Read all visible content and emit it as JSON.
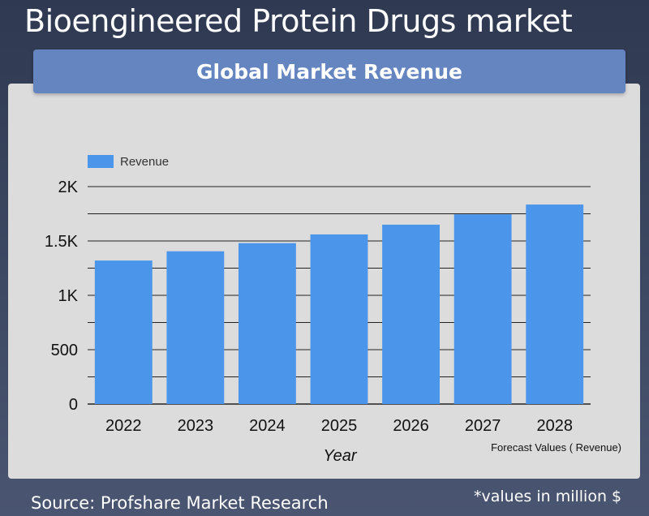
{
  "title": "Bioengineered Protein Drugs market",
  "banner": "Global Market Revenue",
  "source": "Source: Profshare Market Research",
  "note": "*values in million $",
  "chart_data": {
    "type": "bar",
    "categories": [
      "2022",
      "2023",
      "2024",
      "2025",
      "2026",
      "2027",
      "2028"
    ],
    "series": [
      {
        "name": "Revenue",
        "values": [
          1320,
          1405,
          1480,
          1560,
          1650,
          1745,
          1835
        ],
        "color": "#4b95ea"
      }
    ],
    "xlabel": "Year",
    "ylabel": "",
    "ylim": [
      0,
      2000
    ],
    "yticks": [
      0,
      500,
      1000,
      1500,
      2000
    ],
    "ytick_labels": [
      "0",
      "500",
      "1K",
      "1.5K",
      "2K"
    ],
    "grid": true,
    "legend": "top-left",
    "footnote": "Forecast Values ( Revenue)"
  }
}
